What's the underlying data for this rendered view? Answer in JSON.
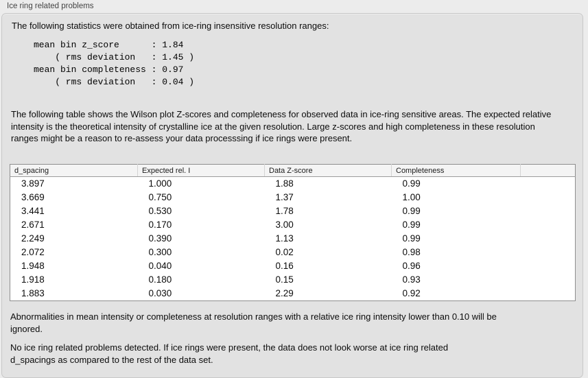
{
  "panel": {
    "title": "Ice ring related problems"
  },
  "intro": "The following statistics were obtained from ice-ring insensitive resolution ranges:",
  "stats_block": {
    "lines": [
      "mean bin z_score      : 1.84",
      "    ( rms deviation   : 1.45 )",
      "mean bin completeness : 0.97",
      "    ( rms deviation   : 0.04 )"
    ]
  },
  "table_description": "The following table shows the Wilson plot Z-scores and completeness for observed data in ice-ring sensitive areas. The expected relative intensity is the theoretical intensity of crystalline ice at the given resolution. Large z-scores and high completeness in these resolution ranges might be a reason to re-assess your data processsing if ice rings were present.",
  "table": {
    "columns": [
      "d_spacing",
      "Expected rel. I",
      "Data Z-score",
      "Completeness",
      ""
    ],
    "rows": [
      [
        "3.897",
        "1.000",
        "1.88",
        "0.99"
      ],
      [
        "3.669",
        "0.750",
        "1.37",
        "1.00"
      ],
      [
        "3.441",
        "0.530",
        "1.78",
        "0.99"
      ],
      [
        "2.671",
        "0.170",
        "3.00",
        "0.99"
      ],
      [
        "2.249",
        "0.390",
        "1.13",
        "0.99"
      ],
      [
        "2.072",
        "0.300",
        "0.02",
        "0.98"
      ],
      [
        "1.948",
        "0.040",
        "0.16",
        "0.96"
      ],
      [
        "1.918",
        "0.180",
        "0.15",
        "0.93"
      ],
      [
        "1.883",
        "0.030",
        "2.29",
        "0.92"
      ]
    ]
  },
  "note_ignore": "Abnormalities in mean intensity or completeness at resolution ranges with a relative ice ring intensity lower than 0.10 will be ignored.",
  "conclusion": "No ice ring related problems detected. If ice rings were present, the data does not look worse at ice ring related d_spacings as compared to the rest of the data set.",
  "colors": {
    "page_bg": "#ececec",
    "panel_bg": "#e2e2e2",
    "panel_border": "#c7c7c7",
    "table_border": "#8e8e8e",
    "table_header_bg": "#f4f4f4",
    "table_body_bg": "#ffffff"
  }
}
